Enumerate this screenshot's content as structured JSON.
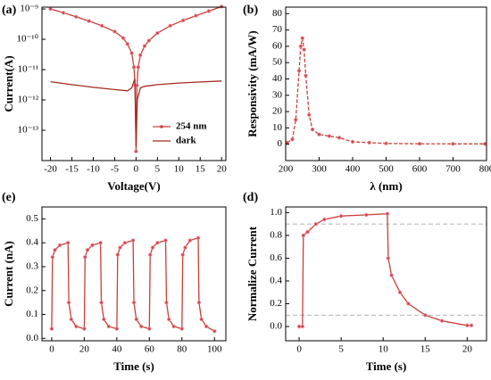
{
  "chart_data": [
    {
      "type": "line",
      "panel_label": "(a)",
      "xlabel": "Voltage(V)",
      "ylabel": "Current(A)",
      "xlim": [
        -22,
        21
      ],
      "xticks": [
        -20,
        -15,
        -10,
        -5,
        0,
        5,
        10,
        15,
        20
      ],
      "ylim": [
        1e-14,
        1.15e-09
      ],
      "ylog": true,
      "yticks": [
        {
          "value": 1e-13,
          "label": "10⁻¹³"
        },
        {
          "value": 1e-12,
          "label": "10⁻¹²"
        },
        {
          "value": 1e-11,
          "label": "10⁻¹¹"
        },
        {
          "value": 1e-10,
          "label": "10⁻¹⁰"
        },
        {
          "value": 1e-09,
          "label": "10⁻⁹"
        }
      ],
      "legend": "lower right",
      "series": [
        {
          "name": "254 nm",
          "color": "#c8403a",
          "marker": true,
          "x": [
            -20,
            -17,
            -14,
            -11,
            -8,
            -5,
            -3,
            -2,
            -1,
            -0.5,
            -0.2,
            0,
            0.2,
            0.5,
            1,
            2,
            3,
            5,
            8,
            11,
            14,
            17,
            20
          ],
          "values": [
            1e-09,
            7.5e-10,
            5.5e-10,
            4e-10,
            2.8e-10,
            1.8e-10,
            1.1e-10,
            7e-11,
            3.5e-11,
            1.2e-11,
            3e-12,
            2e-14,
            3e-12,
            1.2e-11,
            3e-11,
            6e-11,
            9e-11,
            1.6e-10,
            2.8e-10,
            4.2e-10,
            6e-10,
            8.5e-10,
            1.2e-09
          ]
        },
        {
          "name": "dark",
          "color": "#a52a1f",
          "marker": false,
          "x": [
            -20,
            -15,
            -10,
            -5,
            -2,
            -1,
            -0.3,
            0,
            0.3,
            1,
            2,
            5,
            10,
            15,
            20
          ],
          "values": [
            4e-12,
            3.2e-12,
            2.6e-12,
            2.2e-12,
            2e-12,
            2.5e-12,
            5e-12,
            3e-14,
            1e-12,
            2.5e-12,
            2.8e-12,
            3.2e-12,
            3.6e-12,
            3.9e-12,
            4.2e-12
          ]
        }
      ]
    },
    {
      "type": "line",
      "panel_label": "(b)",
      "xlabel": "λ (nm)",
      "ylabel": "Responsivity (mA/W)",
      "xlim": [
        200,
        800
      ],
      "xticks": [
        200,
        300,
        400,
        500,
        600,
        700,
        800
      ],
      "ylim": [
        -10,
        84
      ],
      "yticks": [
        0,
        10,
        20,
        30,
        40,
        50,
        60,
        70,
        80
      ],
      "series": [
        {
          "color": "#c8403a",
          "marker": true,
          "dash": true,
          "x": [
            205,
            220,
            230,
            240,
            245,
            250,
            255,
            260,
            270,
            280,
            300,
            330,
            360,
            400,
            450,
            500,
            600,
            700,
            795
          ],
          "values": [
            1,
            3,
            15,
            45,
            60,
            65,
            58,
            42,
            18,
            9,
            6,
            5,
            4,
            1.5,
            1,
            0.5,
            0.3,
            0.2,
            0.2
          ]
        }
      ]
    },
    {
      "type": "line",
      "panel_label": "(e)",
      "xlabel": "Time (s)",
      "ylabel": "Current (nA)",
      "xlim": [
        -6,
        107
      ],
      "xticks": [
        0,
        20,
        40,
        60,
        80,
        100
      ],
      "ylim": [
        -0.01,
        0.55
      ],
      "yticks": [
        {
          "value": 0,
          "label": "0.0"
        },
        0.1,
        0.2,
        0.3,
        0.4,
        0.5
      ],
      "series": [
        {
          "color": "#c8403a",
          "marker": true,
          "x": [
            0,
            0.5,
            2,
            5,
            10,
            10.5,
            12,
            15,
            20,
            20.5,
            22,
            25,
            30,
            30.5,
            32,
            35,
            40,
            40.5,
            42,
            45,
            50,
            50.5,
            52,
            55,
            60,
            60.5,
            62,
            65,
            70,
            70.5,
            72,
            75,
            80,
            80.5,
            82,
            85,
            90,
            90.5,
            92,
            95,
            100
          ],
          "values": [
            0.04,
            0.34,
            0.37,
            0.39,
            0.4,
            0.15,
            0.08,
            0.05,
            0.04,
            0.34,
            0.37,
            0.39,
            0.4,
            0.15,
            0.08,
            0.05,
            0.04,
            0.35,
            0.38,
            0.4,
            0.41,
            0.15,
            0.08,
            0.05,
            0.04,
            0.35,
            0.38,
            0.4,
            0.41,
            0.15,
            0.08,
            0.05,
            0.04,
            0.35,
            0.38,
            0.41,
            0.42,
            0.15,
            0.08,
            0.05,
            0.03
          ]
        }
      ]
    },
    {
      "type": "line",
      "panel_label": "(d)",
      "xlabel": "Time (s)",
      "ylabel": "Normalize Current",
      "xlim": [
        -1.6,
        22.3
      ],
      "xticks": [
        0,
        5,
        10,
        15,
        20
      ],
      "ylim": [
        -0.125,
        1.05
      ],
      "yticks": [
        {
          "value": 0,
          "label": "0.0"
        },
        0.2,
        0.4,
        0.6,
        0.8,
        {
          "value": 1,
          "label": "1.0"
        }
      ],
      "hlines": [
        0.9,
        0.1
      ],
      "series": [
        {
          "color": "#c8403a",
          "marker": true,
          "x": [
            0,
            0.4,
            0.5,
            1,
            2,
            3,
            5,
            8,
            10.5,
            10.6,
            11,
            12,
            13,
            15,
            17,
            20,
            20.5
          ],
          "values": [
            0,
            0,
            0.8,
            0.83,
            0.9,
            0.94,
            0.97,
            0.98,
            0.99,
            0.6,
            0.45,
            0.3,
            0.2,
            0.1,
            0.05,
            0.01,
            0.01
          ]
        }
      ]
    }
  ]
}
